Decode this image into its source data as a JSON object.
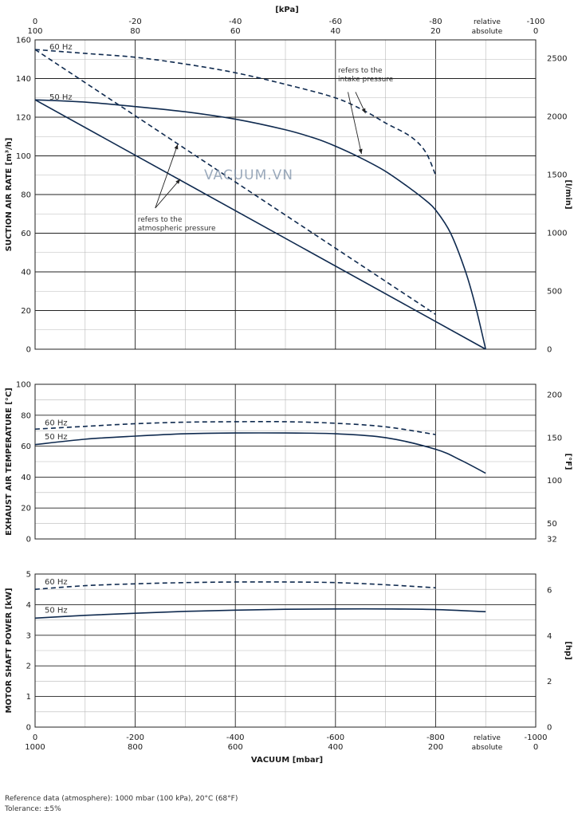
{
  "chart_data": [
    {
      "type": "line",
      "title": "Suction air rate",
      "ylabel": "SUCTION AIR RATE  [m³/h]",
      "y2label": "[l/min]",
      "ylim": [
        0,
        160
      ],
      "yticks": [
        0,
        20,
        40,
        60,
        80,
        100,
        120,
        140,
        160
      ],
      "y2ticks": [
        {
          "value": 0,
          "label": "0"
        },
        {
          "value": 500,
          "label": "500"
        },
        {
          "value": 1000,
          "label": "1000"
        },
        {
          "value": 1500,
          "label": "1500"
        },
        {
          "value": 2000,
          "label": "2000"
        },
        {
          "value": 2500,
          "label": "2500"
        }
      ],
      "series": [
        {
          "name": "60 Hz intake",
          "style": "dashed",
          "x": [
            0,
            -100,
            -200,
            -300,
            -400,
            -500,
            -600,
            -660,
            -700,
            -750,
            -780,
            -800
          ],
          "y": [
            155,
            153,
            151,
            147.5,
            143,
            137,
            130,
            123,
            117,
            110,
            102,
            90
          ]
        },
        {
          "name": "50 Hz intake",
          "style": "solid",
          "x": [
            0,
            -100,
            -200,
            -300,
            -400,
            -500,
            -560,
            -600,
            -650,
            -700,
            -750,
            -780,
            -800,
            -830,
            -860,
            -880,
            -900
          ],
          "y": [
            129,
            127.8,
            125.5,
            122.8,
            119,
            113.5,
            109,
            105,
            99,
            92,
            83,
            77,
            72,
            60,
            40,
            22,
            0
          ]
        },
        {
          "name": "60 Hz atmospheric",
          "style": "dashed",
          "x": [
            0,
            -800
          ],
          "y": [
            155,
            18
          ]
        },
        {
          "name": "50 Hz atmospheric",
          "style": "solid",
          "x": [
            0,
            -900
          ],
          "y": [
            129,
            0
          ]
        }
      ],
      "curve_labels": [
        {
          "text": "60 Hz",
          "x": 18,
          "y": 155
        },
        {
          "text": "50 Hz",
          "x": 18,
          "y": 129
        }
      ],
      "annotations": [
        {
          "text": [
            "refers to the",
            "intake pressure"
          ],
          "x": -605,
          "y": 143,
          "arrows": [
            {
              "from": [
                -640,
                133
              ],
              "to": [
                -660,
                122
              ]
            },
            {
              "from": [
                -625,
                133
              ],
              "to": [
                -652,
                101
              ]
            }
          ]
        },
        {
          "text": [
            "refers to the",
            "atmospheric pressure"
          ],
          "x": -205,
          "y": 66,
          "arrows": [
            {
              "from": [
                -240,
                73
              ],
              "to": [
                -285,
                106
              ]
            },
            {
              "from": [
                -240,
                73
              ],
              "to": [
                -290,
                88
              ]
            }
          ]
        }
      ],
      "watermark": "VACUUM.VN"
    },
    {
      "type": "line",
      "title": "Exhaust air temperature",
      "ylabel": "EXHAUST AIR TEMPERATURE  [°C]",
      "y2label": "[°F]",
      "ylim": [
        0,
        100
      ],
      "yticks": [
        0,
        20,
        40,
        60,
        80,
        100
      ],
      "y2ticks": [
        {
          "value": 32,
          "label": "32"
        },
        {
          "value": 50,
          "label": "50"
        },
        {
          "value": 100,
          "label": "100"
        },
        {
          "value": 150,
          "label": "150"
        },
        {
          "value": 200,
          "label": "200"
        }
      ],
      "series": [
        {
          "name": "60 Hz",
          "style": "dashed",
          "x": [
            0,
            -100,
            -200,
            -300,
            -400,
            -500,
            -600,
            -700,
            -800
          ],
          "y": [
            71,
            72.8,
            74.5,
            75.5,
            75.8,
            75.8,
            74.8,
            72.5,
            67.5
          ]
        },
        {
          "name": "50 Hz",
          "style": "solid",
          "x": [
            0,
            -100,
            -200,
            -300,
            -400,
            -500,
            -600,
            -700,
            -800,
            -850,
            -900
          ],
          "y": [
            61,
            64.5,
            66.5,
            68,
            68.5,
            68.5,
            68,
            65.5,
            58,
            51,
            42.5
          ]
        }
      ],
      "curve_labels": [
        {
          "text": "60 Hz",
          "x": 12,
          "y": 73.5
        },
        {
          "text": "50 Hz",
          "x": 12,
          "y": 64.5
        }
      ]
    },
    {
      "type": "line",
      "title": "Motor shaft power",
      "ylabel": "MOTOR SHAFT POWER  [kW]",
      "y2label": "[hp]",
      "ylim": [
        0,
        5
      ],
      "yticks": [
        0,
        1,
        2,
        3,
        4,
        5
      ],
      "y2ticks": [
        {
          "value": 0,
          "label": "0"
        },
        {
          "value": 2,
          "label": "2"
        },
        {
          "value": 4,
          "label": "4"
        },
        {
          "value": 6,
          "label": "6"
        }
      ],
      "series": [
        {
          "name": "60 Hz",
          "style": "dashed",
          "x": [
            0,
            -100,
            -200,
            -300,
            -400,
            -500,
            -600,
            -700,
            -800
          ],
          "y": [
            4.5,
            4.62,
            4.68,
            4.72,
            4.74,
            4.74,
            4.72,
            4.65,
            4.55
          ]
        },
        {
          "name": "50 Hz",
          "style": "solid",
          "x": [
            0,
            -100,
            -200,
            -300,
            -400,
            -500,
            -600,
            -700,
            -800,
            -900
          ],
          "y": [
            3.56,
            3.65,
            3.72,
            3.78,
            3.82,
            3.85,
            3.86,
            3.86,
            3.84,
            3.77
          ]
        }
      ],
      "curve_labels": [
        {
          "text": "60 Hz",
          "x": 12,
          "y": 4.66
        },
        {
          "text": "50 Hz",
          "x": 12,
          "y": 3.74
        }
      ]
    }
  ],
  "x_axis": {
    "xlim": [
      0,
      -1000
    ],
    "top_title": "[kPa]",
    "top_ticks_relative": [
      {
        "value": 0,
        "label": "0"
      },
      {
        "value": -200,
        "label": "-20"
      },
      {
        "value": -400,
        "label": "-40"
      },
      {
        "value": -600,
        "label": "-60"
      },
      {
        "value": -800,
        "label": "-80"
      },
      {
        "value": -1000,
        "label": "-100"
      }
    ],
    "top_ticks_absolute": [
      {
        "value": 0,
        "label": "100"
      },
      {
        "value": -200,
        "label": "80"
      },
      {
        "value": -400,
        "label": "60"
      },
      {
        "value": -600,
        "label": "40"
      },
      {
        "value": -800,
        "label": "20"
      },
      {
        "value": -1000,
        "label": "0"
      }
    ],
    "bottom_title": "VACUUM  [mbar]",
    "bottom_ticks_relative": [
      {
        "value": 0,
        "label": "0"
      },
      {
        "value": -200,
        "label": "-200"
      },
      {
        "value": -400,
        "label": "-400"
      },
      {
        "value": -600,
        "label": "-600"
      },
      {
        "value": -800,
        "label": "-800"
      },
      {
        "value": -1000,
        "label": "-1000"
      }
    ],
    "bottom_ticks_absolute": [
      {
        "value": 0,
        "label": "1000"
      },
      {
        "value": -200,
        "label": "800"
      },
      {
        "value": -400,
        "label": "600"
      },
      {
        "value": -600,
        "label": "400"
      },
      {
        "value": -800,
        "label": "200"
      },
      {
        "value": -1000,
        "label": "0"
      }
    ],
    "relative_label": "relative",
    "absolute_label": "absolute",
    "minor_step": 100,
    "major_step": 200
  },
  "footer": {
    "reference": "Reference data (atmosphere): 1000 mbar (100 kPa), 20°C (68°F)",
    "tolerance": "Tolerance: ±5%"
  }
}
